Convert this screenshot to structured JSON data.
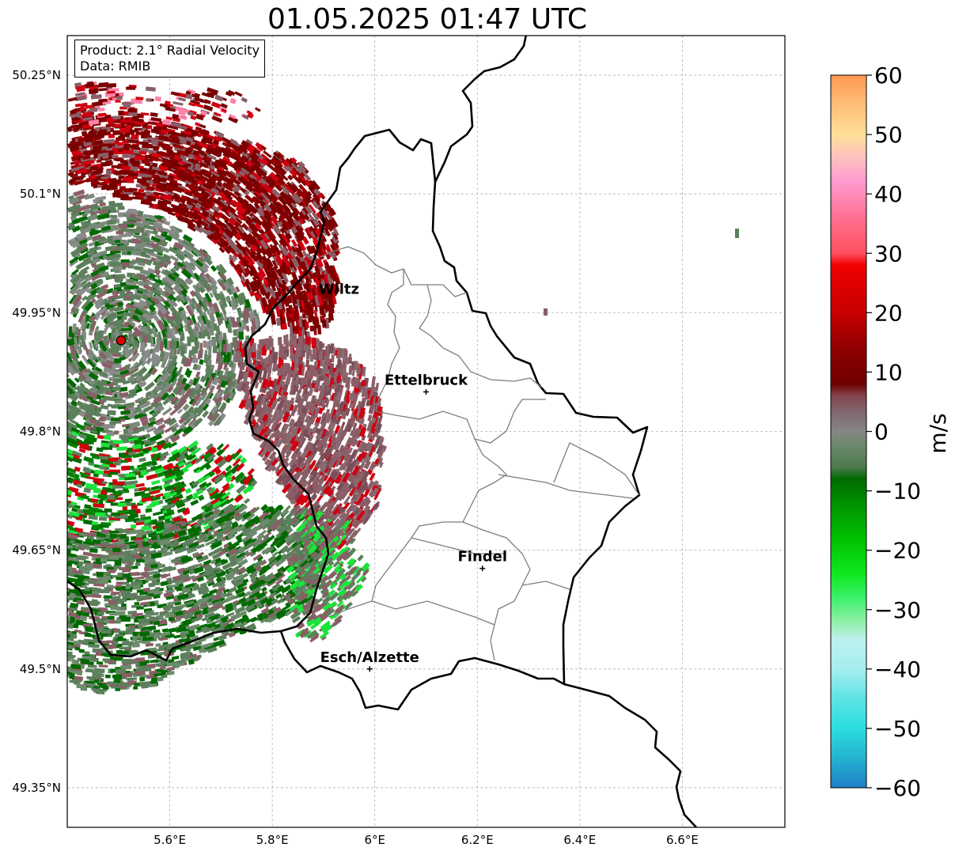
{
  "title": "01.05.2025 01:47 UTC",
  "info": {
    "product": "Product: 2.1° Radial Velocity",
    "data": "Data: RMIB"
  },
  "map": {
    "lon_range": [
      5.4,
      6.8
    ],
    "lat_range": [
      49.3,
      50.3
    ],
    "lon_ticks": [
      {
        "value": 5.6,
        "label": "5.6°E"
      },
      {
        "value": 5.8,
        "label": "5.8°E"
      },
      {
        "value": 6.0,
        "label": "6°E"
      },
      {
        "value": 6.2,
        "label": "6.2°E"
      },
      {
        "value": 6.4,
        "label": "6.4°E"
      },
      {
        "value": 6.6,
        "label": "6.6°E"
      }
    ],
    "lat_ticks": [
      {
        "value": 50.25,
        "label": "50.25°N"
      },
      {
        "value": 50.1,
        "label": "50.1°N"
      },
      {
        "value": 49.95,
        "label": "49.95°N"
      },
      {
        "value": 49.8,
        "label": "49.8°N"
      },
      {
        "value": 49.65,
        "label": "49.65°N"
      },
      {
        "value": 49.5,
        "label": "49.5°N"
      },
      {
        "value": 49.35,
        "label": "49.35°N"
      }
    ],
    "grid": true,
    "radar_site": {
      "lon": 5.505,
      "lat": 49.915
    },
    "cities": [
      {
        "name": "Wiltz",
        "lon": 5.93,
        "lat": 49.965,
        "marker": false
      },
      {
        "name": "Ettelbruck",
        "lon": 6.1,
        "lat": 49.85,
        "marker": true
      },
      {
        "name": "Findel",
        "lon": 6.21,
        "lat": 49.627,
        "marker": true
      },
      {
        "name": "Esch/Alzette",
        "lon": 5.99,
        "lat": 49.5,
        "marker": true
      }
    ]
  },
  "colorbar": {
    "label": "m/s",
    "min": -60,
    "max": 60,
    "ticks": [
      60,
      50,
      40,
      30,
      20,
      10,
      0,
      -10,
      -20,
      -30,
      -40,
      -50,
      -60
    ],
    "tick_labels": [
      "60",
      "50",
      "40",
      "30",
      "20",
      "10",
      "0",
      "−10",
      "−20",
      "−30",
      "−40",
      "−50",
      "−60"
    ],
    "stops": [
      {
        "v": -60,
        "color": "#1f7fc8"
      },
      {
        "v": -55,
        "color": "#23b3d0"
      },
      {
        "v": -50,
        "color": "#2bdde0"
      },
      {
        "v": -45,
        "color": "#5de3e6"
      },
      {
        "v": -40,
        "color": "#a6eef0"
      },
      {
        "v": -35,
        "color": "#bdf0ee"
      },
      {
        "v": -32,
        "color": "#8ff0a8"
      },
      {
        "v": -28,
        "color": "#3cf06a"
      },
      {
        "v": -24,
        "color": "#10e820"
      },
      {
        "v": -18,
        "color": "#00c000"
      },
      {
        "v": -12,
        "color": "#009000"
      },
      {
        "v": -8,
        "color": "#006a00"
      },
      {
        "v": -6,
        "color": "#4e7a4e"
      },
      {
        "v": -2,
        "color": "#6f8a6f"
      },
      {
        "v": 0,
        "color": "#858585"
      },
      {
        "v": 3,
        "color": "#826a72"
      },
      {
        "v": 6,
        "color": "#84444c"
      },
      {
        "v": 8,
        "color": "#6e0000"
      },
      {
        "v": 14,
        "color": "#900000"
      },
      {
        "v": 20,
        "color": "#c80000"
      },
      {
        "v": 28,
        "color": "#f00000"
      },
      {
        "v": 30,
        "color": "#ff5060"
      },
      {
        "v": 36,
        "color": "#ff7090"
      },
      {
        "v": 42,
        "color": "#ff9ad0"
      },
      {
        "v": 46,
        "color": "#ffc0c0"
      },
      {
        "v": 50,
        "color": "#ffe098"
      },
      {
        "v": 55,
        "color": "#ffbe78"
      },
      {
        "v": 60,
        "color": "#ff9850"
      }
    ]
  },
  "colors": {
    "radar_green": "#5c7f5c",
    "radar_dark_green": "#006a00",
    "radar_bright_green": "#1be33a",
    "radar_maroon": "#7a0000",
    "radar_mauve": "#8a5e66",
    "radar_red": "#d00010",
    "radar_pink": "#ff80a8",
    "site_marker": "#e00000"
  }
}
